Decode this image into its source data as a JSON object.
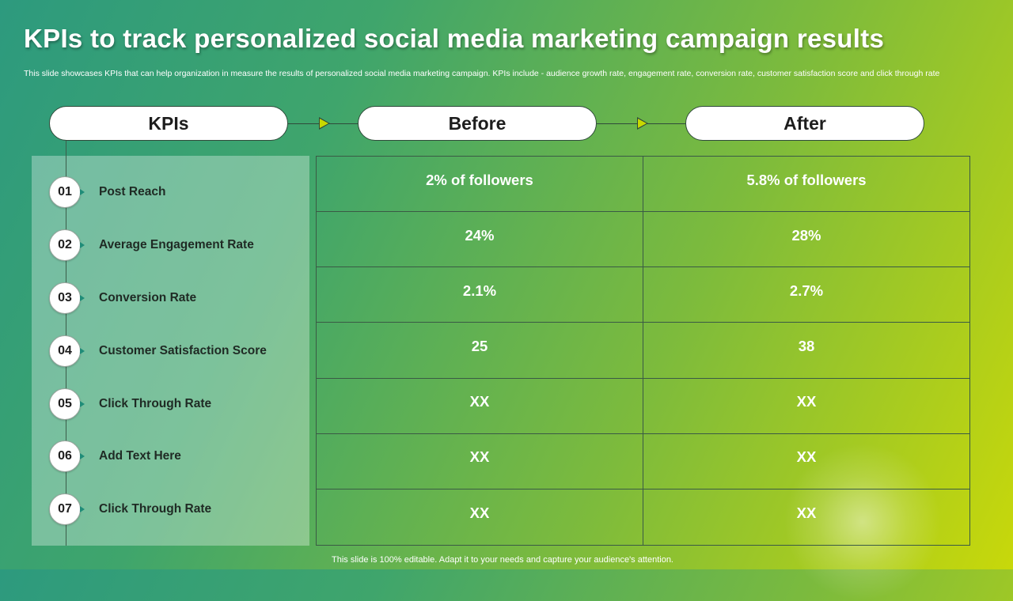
{
  "title": "KPIs to track personalized social media marketing campaign results",
  "subtitle": "This slide showcases KPIs that can help organization in measure the results of personalized social media marketing campaign. KPIs include - audience growth rate, engagement rate, conversion rate, customer satisfaction score and click through rate",
  "headers": {
    "kpis": "KPIs",
    "before": "Before",
    "after": "After"
  },
  "kpis": [
    {
      "num": "01",
      "label": "Post Reach",
      "before": "2% of followers",
      "after": "5.8% of followers"
    },
    {
      "num": "02",
      "label": "Average Engagement Rate",
      "before": "24%",
      "after": "28%"
    },
    {
      "num": "03",
      "label": "Conversion Rate",
      "before": "2.1%",
      "after": "2.7%"
    },
    {
      "num": "04",
      "label": "Customer Satisfaction Score",
      "before": "25",
      "after": "38"
    },
    {
      "num": "05",
      "label": "Click Through Rate",
      "before": "XX",
      "after": "XX"
    },
    {
      "num": "06",
      "label": "Add Text Here",
      "before": "XX",
      "after": "XX"
    },
    {
      "num": "07",
      "label": "Click Through Rate",
      "before": "XX",
      "after": "XX"
    }
  ],
  "footer": "This slide is 100% editable. Adapt it to your needs and capture your audience's attention.",
  "colors": {
    "accent": "#c8d800",
    "teal": "#2d9a7e",
    "lime": "#c8d80a"
  }
}
